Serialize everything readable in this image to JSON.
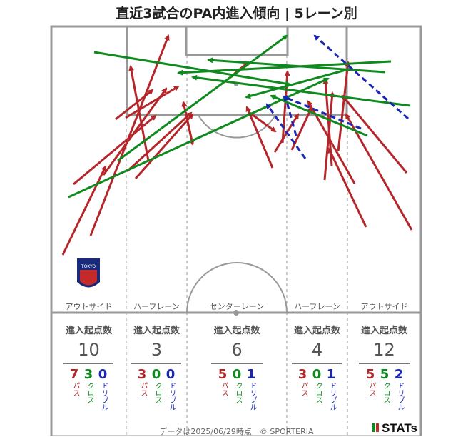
{
  "title": "直近3試合のPA内進入傾向 | 5レーン別",
  "lanes": [
    {
      "name": "アウトサイド",
      "heading": "進入起点数",
      "total": "10",
      "pass": "7",
      "cross": "3",
      "dribble": "0"
    },
    {
      "name": "ハーフレーン",
      "heading": "進入起点数",
      "total": "3",
      "pass": "3",
      "cross": "0",
      "dribble": "0"
    },
    {
      "name": "センターレーン",
      "heading": "進入起点数",
      "total": "6",
      "pass": "5",
      "cross": "0",
      "dribble": "1"
    },
    {
      "name": "ハーフレーン",
      "heading": "進入起点数",
      "total": "4",
      "pass": "3",
      "cross": "0",
      "dribble": "1"
    },
    {
      "name": "アウトサイド",
      "heading": "進入起点数",
      "total": "12",
      "pass": "5",
      "cross": "5",
      "dribble": "2"
    }
  ],
  "labels": {
    "pass": "パス",
    "cross": "クロス",
    "dribble": "ドリブル"
  },
  "colors": {
    "pass": "#b5262b",
    "cross": "#0e8a1e",
    "dribble": "#1a27b5",
    "pitch_line": "#999999"
  },
  "footer": "データは2025/06/29時点　© SPORTERIA",
  "brand": "STATs",
  "crest_text": "TOKYO",
  "arrows": [
    {
      "type": "pass",
      "from": [
        88,
        357
      ],
      "to": [
        148,
        233
      ]
    },
    {
      "type": "pass",
      "from": [
        127,
        330
      ],
      "to": [
        236,
        50
      ]
    },
    {
      "type": "pass",
      "from": [
        103,
        258
      ],
      "to": [
        218,
        162
      ]
    },
    {
      "type": "pass",
      "from": [
        145,
        245
      ],
      "to": [
        233,
        124
      ]
    },
    {
      "type": "pass",
      "from": [
        162,
        167
      ],
      "to": [
        214,
        126
      ]
    },
    {
      "type": "pass",
      "from": [
        176,
        165
      ],
      "to": [
        250,
        121
      ]
    },
    {
      "type": "pass",
      "from": [
        208,
        225
      ],
      "to": [
        183,
        93
      ]
    },
    {
      "type": "pass",
      "from": [
        178,
        240
      ],
      "to": [
        268,
        158
      ]
    },
    {
      "type": "pass",
      "from": [
        263,
        170
      ],
      "to": [
        270,
        202
      ]
    },
    {
      "type": "pass",
      "from": [
        270,
        202
      ],
      "to": [
        257,
        143
      ]
    },
    {
      "type": "pass",
      "from": [
        190,
        250
      ],
      "to": [
        270,
        160
      ]
    },
    {
      "type": "pass",
      "from": [
        318,
        112
      ],
      "to": [
        348,
        87
      ]
    },
    {
      "type": "pass",
      "from": [
        382,
        235
      ],
      "to": [
        346,
        150
      ]
    },
    {
      "type": "pass",
      "from": [
        396,
        200
      ],
      "to": [
        403,
        100
      ]
    },
    {
      "type": "pass",
      "from": [
        385,
        213
      ],
      "to": [
        418,
        160
      ]
    },
    {
      "type": "pass",
      "from": [
        409,
        210
      ],
      "to": [
        437,
        150
      ]
    },
    {
      "type": "pass",
      "from": [
        455,
        252
      ],
      "to": [
        466,
        130
      ]
    },
    {
      "type": "pass",
      "from": [
        465,
        232
      ],
      "to": [
        456,
        111
      ]
    },
    {
      "type": "pass",
      "from": [
        513,
        318
      ],
      "to": [
        461,
        208
      ]
    },
    {
      "type": "pass",
      "from": [
        577,
        322
      ],
      "to": [
        485,
        160
      ]
    },
    {
      "type": "pass",
      "from": [
        570,
        242
      ],
      "to": [
        480,
        134
      ]
    },
    {
      "type": "pass",
      "from": [
        474,
        212
      ],
      "to": [
        488,
        87
      ]
    },
    {
      "type": "pass",
      "from": [
        497,
        257
      ],
      "to": [
        432,
        142
      ]
    },
    {
      "type": "pass",
      "from": [
        350,
        158
      ],
      "to": [
        386,
        184
      ]
    },
    {
      "type": "cross",
      "from": [
        96,
        276
      ],
      "to": [
        460,
        110
      ]
    },
    {
      "type": "cross",
      "from": [
        132,
        73
      ],
      "to": [
        406,
        118
      ]
    },
    {
      "type": "cross",
      "from": [
        165,
        225
      ],
      "to": [
        402,
        50
      ]
    },
    {
      "type": "cross",
      "from": [
        548,
        86
      ],
      "to": [
        250,
        102
      ]
    },
    {
      "type": "cross",
      "from": [
        540,
        101
      ],
      "to": [
        292,
        84
      ]
    },
    {
      "type": "cross",
      "from": [
        575,
        148
      ],
      "to": [
        270,
        108
      ]
    },
    {
      "type": "cross",
      "from": [
        515,
        190
      ],
      "to": [
        380,
        134
      ]
    },
    {
      "type": "cross",
      "from": [
        492,
        96
      ],
      "to": [
        345,
        136
      ]
    },
    {
      "type": "dribble",
      "from": [
        428,
        222
      ],
      "to": [
        374,
        146
      ]
    },
    {
      "type": "dribble",
      "from": [
        572,
        166
      ],
      "to": [
        441,
        50
      ]
    },
    {
      "type": "dribble",
      "from": [
        506,
        180
      ],
      "to": [
        397,
        135
      ]
    },
    {
      "type": "dribble",
      "from": [
        415,
        190
      ],
      "to": [
        400,
        135
      ]
    }
  ]
}
